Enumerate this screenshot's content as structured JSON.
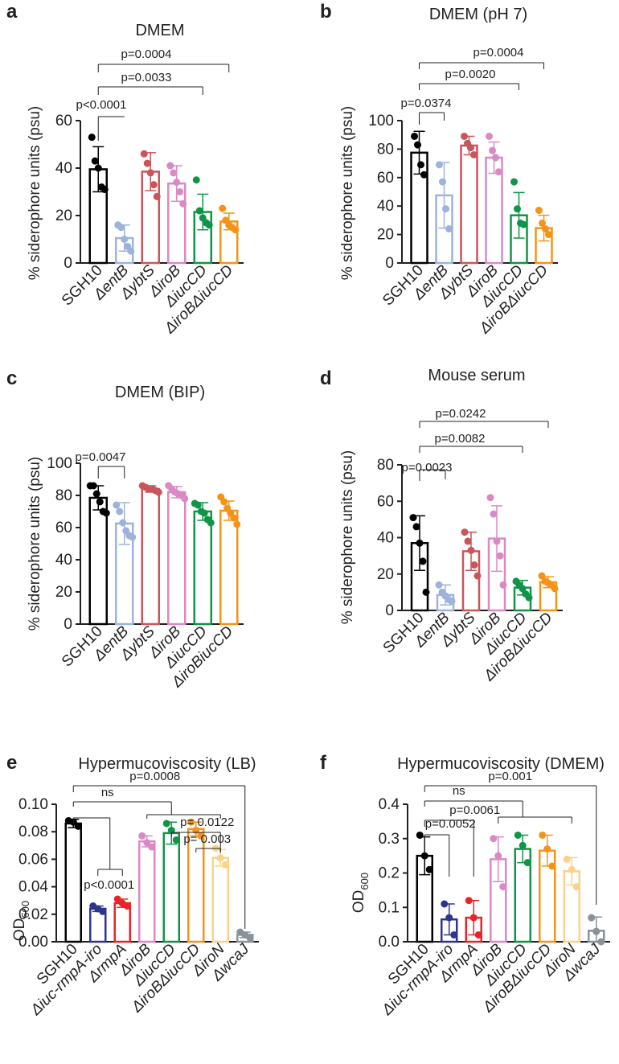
{
  "chart_data": [
    {
      "panel": "a",
      "type": "bar",
      "title": "DMEM",
      "ylabel": "% siderophore units (psu)",
      "ylim": [
        0,
        60
      ],
      "yticks": [
        0,
        20,
        40,
        60
      ],
      "categories": [
        "SGH10",
        "ΔentB",
        "ΔybtS",
        "ΔiroB",
        "ΔiucCD",
        "ΔiroBΔiucCD"
      ],
      "values": [
        39.5,
        10.5,
        38.5,
        33.5,
        21.5,
        17.5
      ],
      "errors": [
        9.5,
        5.5,
        8,
        7.5,
        7.5,
        3.5
      ],
      "points": [
        [
          53,
          43,
          40,
          32,
          31
        ],
        [
          16,
          15,
          10,
          7,
          5
        ],
        [
          46,
          42,
          38,
          33,
          28
        ],
        [
          41,
          38,
          34,
          30,
          25
        ],
        [
          35,
          22,
          19,
          17,
          16
        ],
        [
          23,
          18,
          16,
          15,
          14
        ]
      ],
      "comparisons": [
        {
          "from": 0,
          "to": 1,
          "label": "p<0.0001",
          "y": 1
        },
        {
          "from": 0,
          "to": 4,
          "label": "p=0.0033",
          "y": 2
        },
        {
          "from": 0,
          "to": 5,
          "label": "p=0.0004",
          "y": 3
        }
      ]
    },
    {
      "panel": "b",
      "type": "bar",
      "title": "DMEM (pH 7)",
      "ylabel": "% siderophore units (psu)",
      "ylim": [
        0,
        100
      ],
      "yticks": [
        0,
        20,
        40,
        60,
        80,
        100
      ],
      "categories": [
        "SGH10",
        "ΔentB",
        "ΔybtS",
        "ΔiroB",
        "ΔiucCD",
        "ΔiroBΔiucCD"
      ],
      "values": [
        77.5,
        47.5,
        82.5,
        74,
        33.5,
        24.5
      ],
      "errors": [
        15,
        23,
        6.5,
        11,
        16,
        9
      ],
      "points": [
        [
          89,
          83,
          69,
          62
        ],
        [
          69,
          57,
          38,
          24
        ],
        [
          89,
          84,
          81,
          76
        ],
        [
          89,
          79,
          74,
          64
        ],
        [
          57,
          38,
          28,
          27
        ],
        [
          37,
          28,
          24,
          20
        ]
      ],
      "comparisons": [
        {
          "from": 0,
          "to": 1,
          "label": "p=0.0374",
          "y": 1
        },
        {
          "from": 0,
          "to": 4,
          "label": "p=0.0020",
          "y": 2
        },
        {
          "from": 0,
          "to": 5,
          "label": "p=0.0004",
          "y": 3
        }
      ]
    },
    {
      "panel": "c",
      "type": "bar",
      "title": "DMEM (BIP)",
      "ylabel": "% siderophore units (psu)",
      "ylim": [
        0,
        100
      ],
      "yticks": [
        0,
        20,
        40,
        60,
        80,
        100
      ],
      "categories": [
        "SGH10",
        "ΔentB",
        "ΔybtS",
        "ΔiroB",
        "ΔiucCD",
        "ΔiroBiucCD"
      ],
      "values": [
        78.5,
        62.5,
        84,
        82,
        70,
        70.5
      ],
      "errors": [
        7.5,
        13,
        2,
        3.5,
        5.5,
        6
      ],
      "points": [
        [
          86,
          86,
          81,
          76,
          70,
          69
        ],
        [
          74,
          70,
          63,
          58,
          55,
          54
        ],
        [
          86,
          85,
          84,
          84,
          83,
          82
        ],
        [
          86,
          84,
          82,
          81,
          80,
          78
        ],
        [
          75,
          74,
          70,
          69,
          65,
          63
        ],
        [
          79,
          76,
          72,
          69,
          66,
          62
        ]
      ],
      "comparisons": [
        {
          "from": 0,
          "to": 1,
          "label": "p=0.0047",
          "y": 1
        }
      ]
    },
    {
      "panel": "d",
      "type": "bar",
      "title": "Mouse serum",
      "ylabel": "% siderophore units (psu)",
      "ylim": [
        0,
        80
      ],
      "yticks": [
        0,
        20,
        40,
        60,
        80
      ],
      "categories": [
        "SGH10",
        "ΔentB",
        "ΔybtS",
        "ΔiroB",
        "ΔiucCD",
        "ΔiroBΔiucCD"
      ],
      "values": [
        37,
        8.5,
        32.5,
        39.5,
        12.5,
        15.5
      ],
      "errors": [
        15,
        5.5,
        10.5,
        18,
        4,
        3
      ],
      "points": [
        [
          51,
          46,
          37,
          27,
          10
        ],
        [
          14,
          10,
          8,
          6,
          5
        ],
        [
          43,
          38,
          33,
          25,
          19
        ],
        [
          62,
          53,
          38,
          30,
          14
        ],
        [
          16,
          14,
          12,
          9,
          7
        ],
        [
          19,
          16,
          15,
          14,
          12
        ]
      ],
      "comparisons": [
        {
          "from": 0,
          "to": 1,
          "label": "p=0.0023",
          "y": 1
        },
        {
          "from": 0,
          "to": 4,
          "label": "p=0.0082",
          "y": 2
        },
        {
          "from": 0,
          "to": 5,
          "label": "p=0.0242",
          "y": 3
        }
      ]
    },
    {
      "panel": "e",
      "type": "bar",
      "title": "Hypermucoviscosity (LB)",
      "ylabel": "OD",
      "ylabel_sub": "600",
      "ylim": [
        0,
        0.1
      ],
      "yticks": [
        0,
        0.02,
        0.04,
        0.06,
        0.08,
        0.1
      ],
      "ytick_labels": [
        "0.00",
        "0.02",
        "0.04",
        "0.06",
        "0.08",
        "0.10"
      ],
      "categories": [
        "SGH10",
        "Δiuc-rmpA-iro",
        "ΔrmpA",
        "ΔiroB",
        "ΔiucCD",
        "ΔiroBΔiucCD",
        "ΔiroN",
        "ΔwcaJ"
      ],
      "values": [
        0.086,
        0.024,
        0.028,
        0.073,
        0.079,
        0.082,
        0.061,
        0.005
      ],
      "errors": [
        0.003,
        0.002,
        0.003,
        0.004,
        0.008,
        0.005,
        0.006,
        0.002
      ],
      "points": [
        [
          0.088,
          0.087,
          0.084
        ],
        [
          0.026,
          0.024,
          0.022
        ],
        [
          0.031,
          0.028,
          0.026
        ],
        [
          0.077,
          0.072,
          0.069
        ],
        [
          0.086,
          0.081,
          0.074
        ],
        [
          0.087,
          0.081,
          0.077
        ],
        [
          0.068,
          0.061,
          0.056
        ],
        [
          0.007,
          0.005,
          0.003
        ]
      ],
      "comparisons": [
        {
          "label": "p<0.0001",
          "type": "group"
        },
        {
          "label": "p= 0.003",
          "type": "bracket"
        },
        {
          "label": "p= 0.0122",
          "type": "bracket"
        },
        {
          "label": "ns",
          "type": "group"
        },
        {
          "label": "p=0.0008",
          "type": "bracket"
        }
      ]
    },
    {
      "panel": "f",
      "type": "bar",
      "title": "Hypermucoviscosity (DMEM)",
      "ylabel": "OD",
      "ylabel_sub": "600",
      "ylim": [
        0,
        0.4
      ],
      "yticks": [
        0,
        0.1,
        0.2,
        0.3,
        0.4
      ],
      "ytick_labels": [
        "0.0",
        "0.1",
        "0.2",
        "0.3",
        "0.4"
      ],
      "categories": [
        "SGH10",
        "Δiuc-rmpA-iro",
        "ΔrmpA",
        "ΔiroB",
        "ΔiucCD",
        "ΔiroBΔiucCD",
        "ΔiroN",
        "ΔwcaJ"
      ],
      "values": [
        0.25,
        0.065,
        0.07,
        0.24,
        0.27,
        0.265,
        0.205,
        0.032
      ],
      "errors": [
        0.055,
        0.045,
        0.05,
        0.065,
        0.04,
        0.045,
        0.04,
        0.04
      ],
      "points": [
        [
          0.31,
          0.25,
          0.21
        ],
        [
          0.11,
          0.07,
          0.02
        ],
        [
          0.12,
          0.07,
          0.02
        ],
        [
          0.3,
          0.25,
          0.16
        ],
        [
          0.31,
          0.28,
          0.23
        ],
        [
          0.31,
          0.27,
          0.22
        ],
        [
          0.24,
          0.21,
          0.16
        ],
        [
          0.07,
          0.03,
          0.0
        ]
      ],
      "comparisons": [
        {
          "label": "p=0.0052",
          "type": "bracket"
        },
        {
          "label": "p=0.0061",
          "type": "bracket"
        },
        {
          "label": "ns",
          "type": "group"
        },
        {
          "label": "p=0.001",
          "type": "bracket"
        }
      ]
    }
  ],
  "colors": {
    "SGH10": "#000000",
    "entB": "#9db3dc",
    "ybtS": "#c9555b",
    "iroB": "#d98ac4",
    "iucCD": "#109447",
    "iroBiucCD": "#f39419",
    "iuc": "#2e3590",
    "rmpA": "#e8232a",
    "iroN": "#f8d48b",
    "wcaJ": "#8a9198"
  }
}
